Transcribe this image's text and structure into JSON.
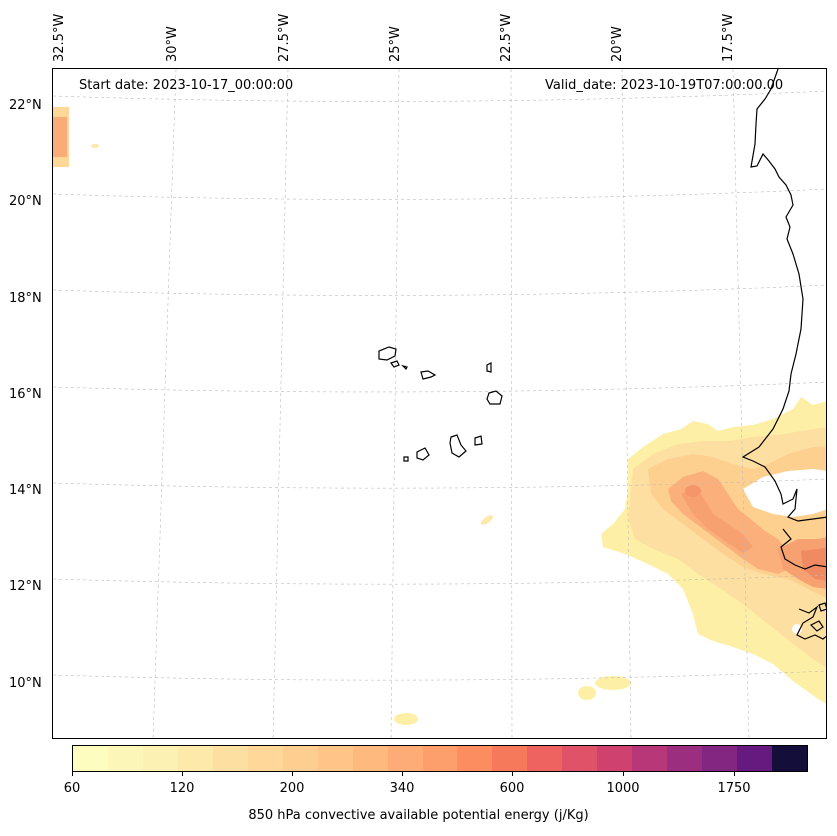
{
  "annotations": {
    "start_date": "Start date: 2023-10-17_00:00:00",
    "valid_date": "Valid_date: 2023-10-19T07:00:00.00"
  },
  "longitude_labels": [
    "32.5°W",
    "30°W",
    "27.5°W",
    "25°W",
    "22.5°W",
    "20°W",
    "17.5°W"
  ],
  "latitude_labels": [
    "22°N",
    "20°N",
    "18°N",
    "16°N",
    "14°N",
    "12°N",
    "10°N"
  ],
  "colorbar": {
    "label": "850 hPa convective available potential energy (j/Kg)",
    "tick_labels": [
      "60",
      "120",
      "200",
      "340",
      "600",
      "1000",
      "1750"
    ],
    "colors": [
      "#fcfdbf",
      "#fcf7b9",
      "#fcf1b3",
      "#fde9aa",
      "#fde0a1",
      "#fed799",
      "#fece91",
      "#fec488",
      "#feb97f",
      "#fdac78",
      "#fd9f6d",
      "#fb8d61",
      "#f7795c",
      "#ee6360",
      "#e05267",
      "#cf426f",
      "#b73779",
      "#9c2e7f",
      "#832681",
      "#661a80",
      "#130f3a"
    ]
  },
  "map": {
    "colors": {
      "coast": "#000000",
      "grid": "#bbbbbb",
      "low": "#fdf0a6",
      "mid": "#fed08f",
      "high": "#f7a070",
      "peak": "#ef8a62"
    },
    "features": [
      "Cape Verde islands",
      "West African coastline",
      "CAPE contours"
    ]
  }
}
